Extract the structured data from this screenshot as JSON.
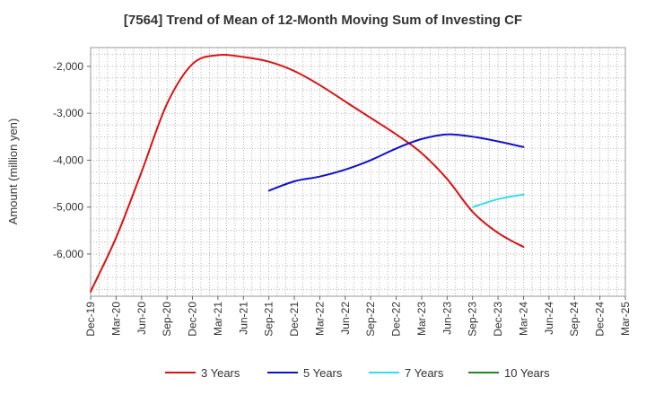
{
  "chart_data": {
    "type": "line",
    "title": "[7564]  Trend of Mean of 12-Month Moving Sum of Investing CF",
    "ylabel": "Amount (million yen)",
    "xlabel": "",
    "ylim": [
      -6900,
      -1600
    ],
    "yticks": [
      -2000,
      -3000,
      -4000,
      -5000,
      -6000
    ],
    "ytick_labels": [
      "-2,000",
      "-3,000",
      "-4,000",
      "-5,000",
      "-6,000"
    ],
    "categories": [
      "Dec-19",
      "Mar-20",
      "Jun-20",
      "Sep-20",
      "Dec-20",
      "Mar-21",
      "Jun-21",
      "Sep-21",
      "Dec-21",
      "Mar-22",
      "Jun-22",
      "Sep-22",
      "Dec-22",
      "Mar-23",
      "Jun-23",
      "Sep-23",
      "Dec-23",
      "Mar-24",
      "Jun-24",
      "Sep-24",
      "Dec-24",
      "Mar-25"
    ],
    "grid": true,
    "legend_position": "bottom",
    "series": [
      {
        "name": "3 Years",
        "color": "#dd1111",
        "values": [
          -6800,
          -5650,
          -4250,
          -2800,
          -1950,
          -1760,
          -1800,
          -1900,
          -2100,
          -2400,
          -2750,
          -3100,
          -3450,
          -3850,
          -4400,
          -5100,
          -5550,
          -5850,
          null,
          null,
          null,
          null
        ]
      },
      {
        "name": "5 Years",
        "color": "#1111cc",
        "values": [
          null,
          null,
          null,
          null,
          null,
          null,
          null,
          -4650,
          -4450,
          -4350,
          -4200,
          -4000,
          -3750,
          -3550,
          -3450,
          -3500,
          -3600,
          -3720,
          null,
          null,
          null,
          null
        ]
      },
      {
        "name": "7 Years",
        "color": "#33ddee",
        "values": [
          null,
          null,
          null,
          null,
          null,
          null,
          null,
          null,
          null,
          null,
          null,
          null,
          null,
          null,
          null,
          -5000,
          -4830,
          -4730,
          null,
          null,
          null,
          null
        ]
      },
      {
        "name": "10 Years",
        "color": "#228822",
        "values": [
          null,
          null,
          null,
          null,
          null,
          null,
          null,
          null,
          null,
          null,
          null,
          null,
          null,
          null,
          null,
          null,
          null,
          null,
          null,
          null,
          null,
          null
        ]
      }
    ]
  }
}
